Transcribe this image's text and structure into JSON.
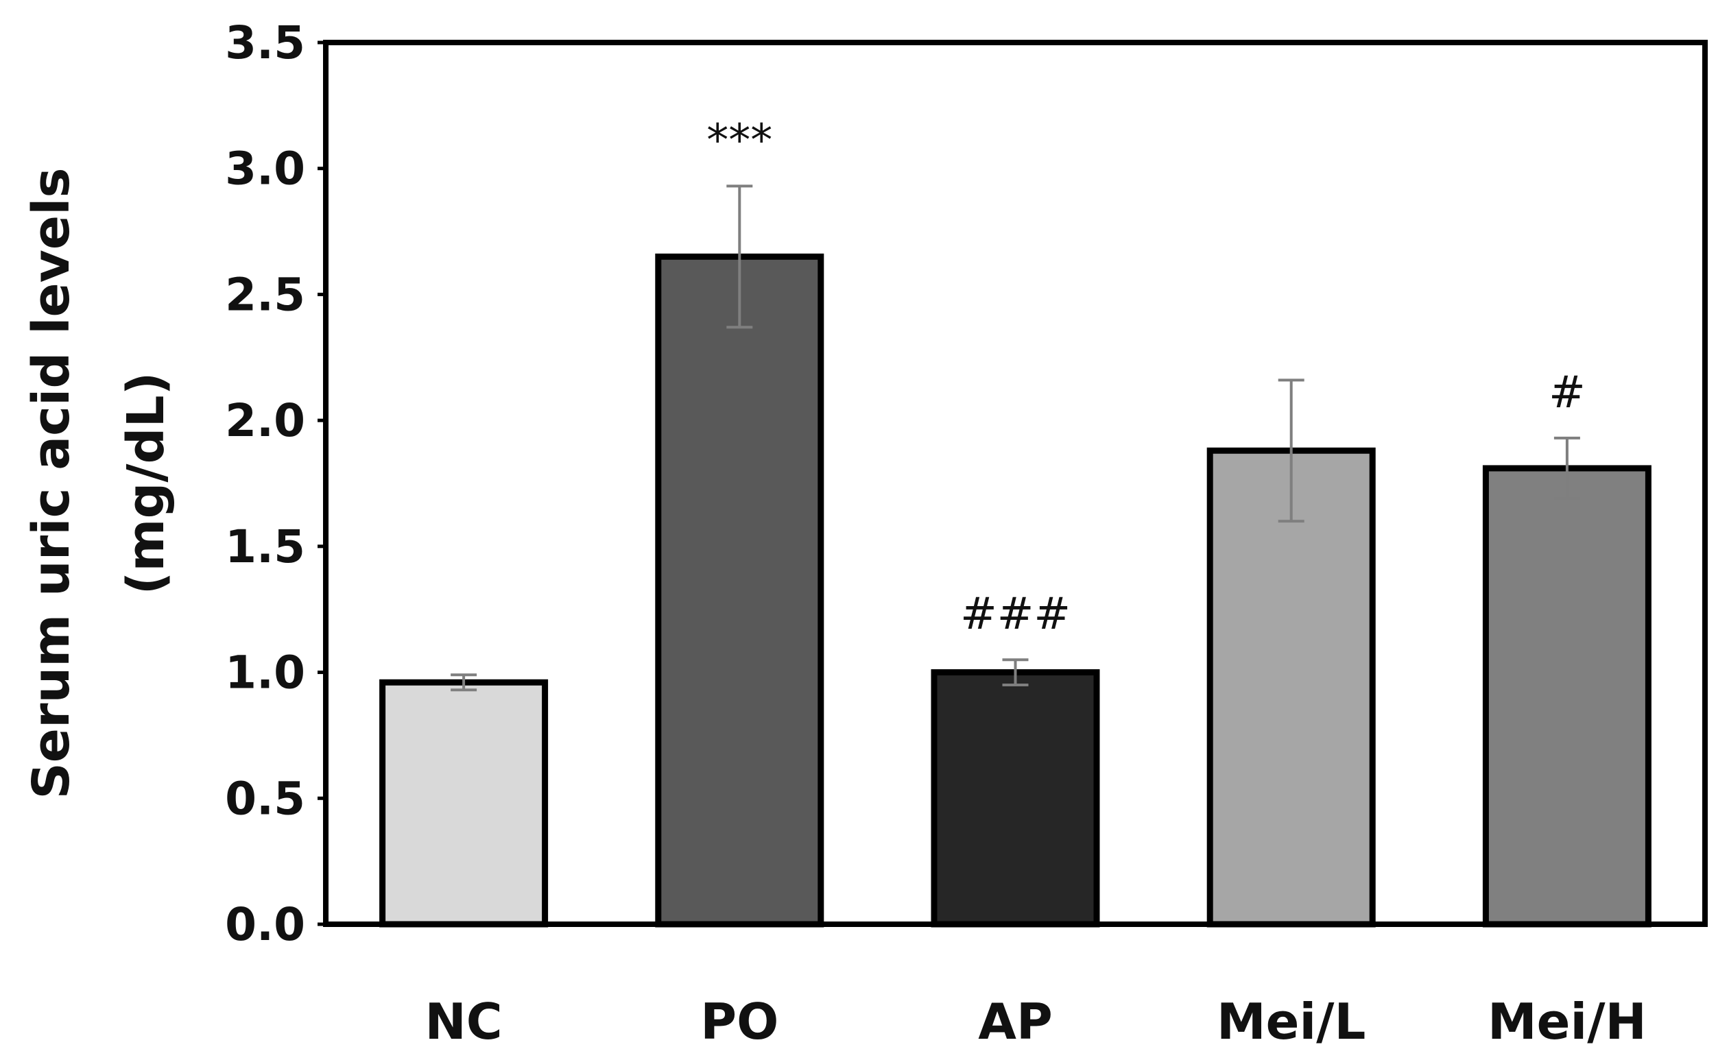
{
  "chart_data": {
    "type": "bar",
    "title": "",
    "xlabel": "",
    "ylabel_line1": "Serum uric acid levels",
    "ylabel_line2": "(mg/dL)",
    "ylim": [
      0,
      3.5
    ],
    "yticks": [
      0.0,
      0.5,
      1.0,
      1.5,
      2.0,
      2.5,
      3.0,
      3.5
    ],
    "ytick_labels": [
      "0.0",
      "0.5",
      "1.0",
      "1.5",
      "2.0",
      "2.5",
      "3.0",
      "3.5"
    ],
    "grid": false,
    "legend": "none",
    "categories": [
      "NC",
      "PO",
      "AP",
      "Mei/L",
      "Mei/H"
    ],
    "values": [
      0.96,
      2.65,
      1.0,
      1.88,
      1.81
    ],
    "errors": [
      0.03,
      0.28,
      0.05,
      0.28,
      0.12
    ],
    "annotations": [
      "",
      "***",
      "###",
      "",
      "#"
    ],
    "bar_colors": [
      "#d9d9d9",
      "#595959",
      "#262626",
      "#a6a6a6",
      "#808080"
    ],
    "error_bar_color": "#7f7f7f",
    "axis_color": "#000000"
  }
}
